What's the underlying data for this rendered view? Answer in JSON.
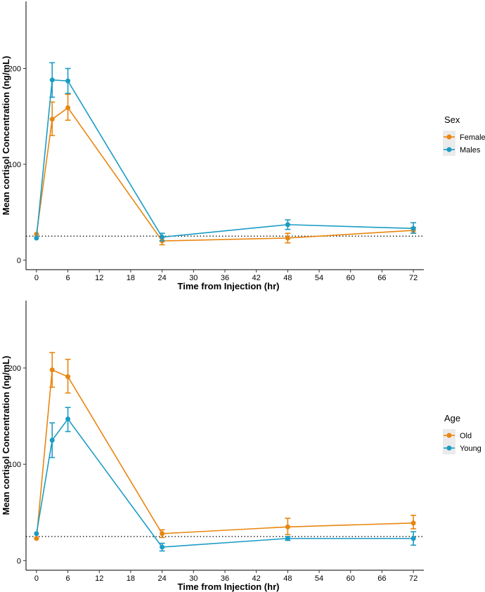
{
  "chart_data": [
    {
      "type": "line",
      "error_bars": true,
      "xlabel": "Time from Injection (hr)",
      "ylabel": "Mean cortisol Concentration (ng/mL)",
      "xlim": [
        -2,
        74
      ],
      "ylim": [
        -10,
        270
      ],
      "xticks": [
        0,
        6,
        12,
        18,
        24,
        30,
        36,
        42,
        48,
        54,
        60,
        66,
        72
      ],
      "yticks": [
        0,
        100,
        200
      ],
      "reference_line": 25,
      "legend_title": "Sex",
      "legend_position": "right",
      "series": [
        {
          "name": "Females",
          "color": "#E8860F",
          "x": [
            0,
            3,
            6,
            24,
            48,
            72
          ],
          "y": [
            27,
            147,
            159,
            20,
            23,
            31
          ],
          "lower": [
            27,
            130,
            146,
            16,
            18,
            28
          ],
          "upper": [
            27,
            165,
            173,
            24,
            28,
            34
          ]
        },
        {
          "name": "Males",
          "color": "#1A9CC4",
          "x": [
            0,
            3,
            6,
            24,
            48,
            72
          ],
          "y": [
            23,
            188,
            187,
            24,
            37,
            33
          ],
          "lower": [
            23,
            170,
            174,
            20,
            32,
            28
          ],
          "upper": [
            23,
            206,
            200,
            28,
            42,
            39
          ]
        }
      ]
    },
    {
      "type": "line",
      "error_bars": true,
      "xlabel": "Time from Injection (hr)",
      "ylabel": "Mean cortisol Concentration (ng/mL)",
      "xlim": [
        -2,
        74
      ],
      "ylim": [
        -10,
        270
      ],
      "xticks": [
        0,
        6,
        12,
        18,
        24,
        30,
        36,
        42,
        48,
        54,
        60,
        66,
        72
      ],
      "yticks": [
        0,
        100,
        200
      ],
      "reference_line": 25,
      "legend_title": "Age",
      "legend_position": "right",
      "series": [
        {
          "name": "Old",
          "color": "#E8860F",
          "x": [
            0,
            3,
            6,
            24,
            48,
            72
          ],
          "y": [
            23,
            198,
            191,
            28,
            35,
            39
          ],
          "lower": [
            23,
            180,
            174,
            24,
            27,
            33
          ],
          "upper": [
            23,
            216,
            209,
            32,
            44,
            47
          ]
        },
        {
          "name": "Young",
          "color": "#1A9CC4",
          "x": [
            0,
            3,
            6,
            24,
            48,
            72
          ],
          "y": [
            28,
            125,
            147,
            14,
            23,
            23
          ],
          "lower": [
            28,
            107,
            134,
            10,
            21,
            16
          ],
          "upper": [
            28,
            143,
            159,
            18,
            25,
            30
          ]
        }
      ]
    }
  ]
}
